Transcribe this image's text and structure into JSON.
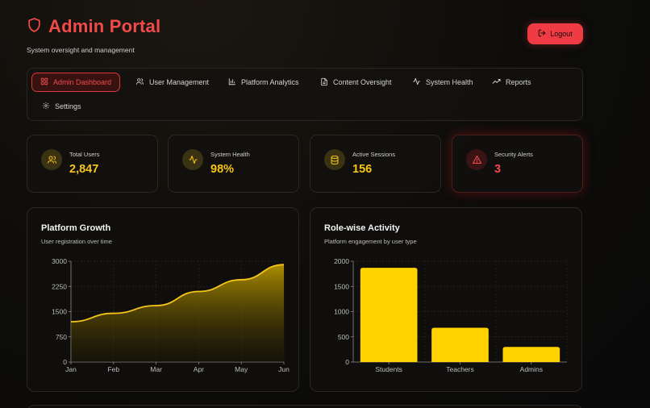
{
  "header": {
    "title": "Admin Portal",
    "subtitle": "System oversight and management",
    "logout_label": "Logout"
  },
  "nav": {
    "tabs": [
      {
        "label": "Admin Dashboard",
        "icon": "grid-icon",
        "active": true
      },
      {
        "label": "User Management",
        "icon": "users-icon",
        "active": false
      },
      {
        "label": "Platform Analytics",
        "icon": "bar-chart-icon",
        "active": false
      },
      {
        "label": "Content Oversight",
        "icon": "file-icon",
        "active": false
      },
      {
        "label": "System Health",
        "icon": "activity-icon",
        "active": false
      },
      {
        "label": "Reports",
        "icon": "trending-up-icon",
        "active": false
      },
      {
        "label": "Settings",
        "icon": "gear-icon",
        "active": false
      }
    ]
  },
  "stats": [
    {
      "label": "Total Users",
      "value": "2,847",
      "icon": "users-icon"
    },
    {
      "label": "System Health",
      "value": "98%",
      "icon": "activity-icon"
    },
    {
      "label": "Active Sessions",
      "value": "156",
      "icon": "database-icon"
    },
    {
      "label": "Security Alerts",
      "value": "3",
      "icon": "alert-triangle-icon"
    }
  ],
  "colors": {
    "accent_red": "#ef3b43",
    "accent_yellow": "#f5c518",
    "bar_yellow": "#ffd200"
  },
  "growth_panel": {
    "title": "Platform Growth",
    "subtitle": "User registration over time"
  },
  "activity_panel": {
    "title": "Role-wise Activity",
    "subtitle": "Platform engagement by user type"
  },
  "chart_data": [
    {
      "type": "area",
      "x": [
        "Jan",
        "Feb",
        "Mar",
        "Apr",
        "May",
        "Jun"
      ],
      "values": [
        1200,
        1450,
        1680,
        2100,
        2450,
        2900
      ],
      "yticks": [
        "0",
        "750",
        "1500",
        "2250",
        "3000"
      ],
      "ylim": [
        0,
        3000
      ]
    },
    {
      "type": "bar",
      "categories": [
        "Students",
        "Teachers",
        "Admins"
      ],
      "values": [
        1870,
        680,
        300
      ],
      "yticks": [
        "0",
        "500",
        "1000",
        "1500",
        "2000"
      ],
      "ylim": [
        0,
        2000
      ]
    }
  ]
}
